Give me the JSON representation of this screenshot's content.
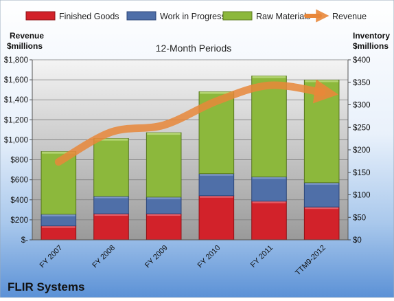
{
  "chart_data": {
    "type": "bar",
    "title": "12-Month Periods",
    "company": "FLIR Systems",
    "left_axis_label": [
      "Revenue",
      "$millions"
    ],
    "right_axis_label": [
      "Inventory",
      "$millions"
    ],
    "categories": [
      "FY 2007",
      "FY 2008",
      "FY 2009",
      "FY 2010",
      "FY 2011",
      "TTM9-2012"
    ],
    "inventory_series": [
      {
        "name": "Finished Goods",
        "color": "#d2222a",
        "values": [
          31,
          58,
          58,
          98,
          86,
          73
        ]
      },
      {
        "name": "Work in Progress",
        "color": "#4f6fa8",
        "values": [
          26,
          39,
          37,
          49,
          54,
          54
        ]
      },
      {
        "name": "Raw Materials",
        "color": "#8cb83c",
        "values": [
          139,
          128,
          143,
          182,
          224,
          228
        ]
      }
    ],
    "revenue_series": {
      "name": "Revenue",
      "color": "#e8873a",
      "values": [
        779,
        1077,
        1147,
        1386,
        1544,
        1475
      ]
    },
    "left_axis": {
      "min": 0,
      "max": 1800,
      "ticks": [
        "$-",
        "$200",
        "$400",
        "$600",
        "$800",
        "$1,000",
        "$1,200",
        "$1,400",
        "$1,600",
        "$1,800"
      ]
    },
    "right_axis": {
      "min": 0,
      "max": 400,
      "ticks": [
        "$0",
        "$50",
        "$100",
        "$150",
        "$200",
        "$250",
        "$300",
        "$350",
        "$400"
      ]
    },
    "grid": true,
    "legend_position": "top"
  }
}
